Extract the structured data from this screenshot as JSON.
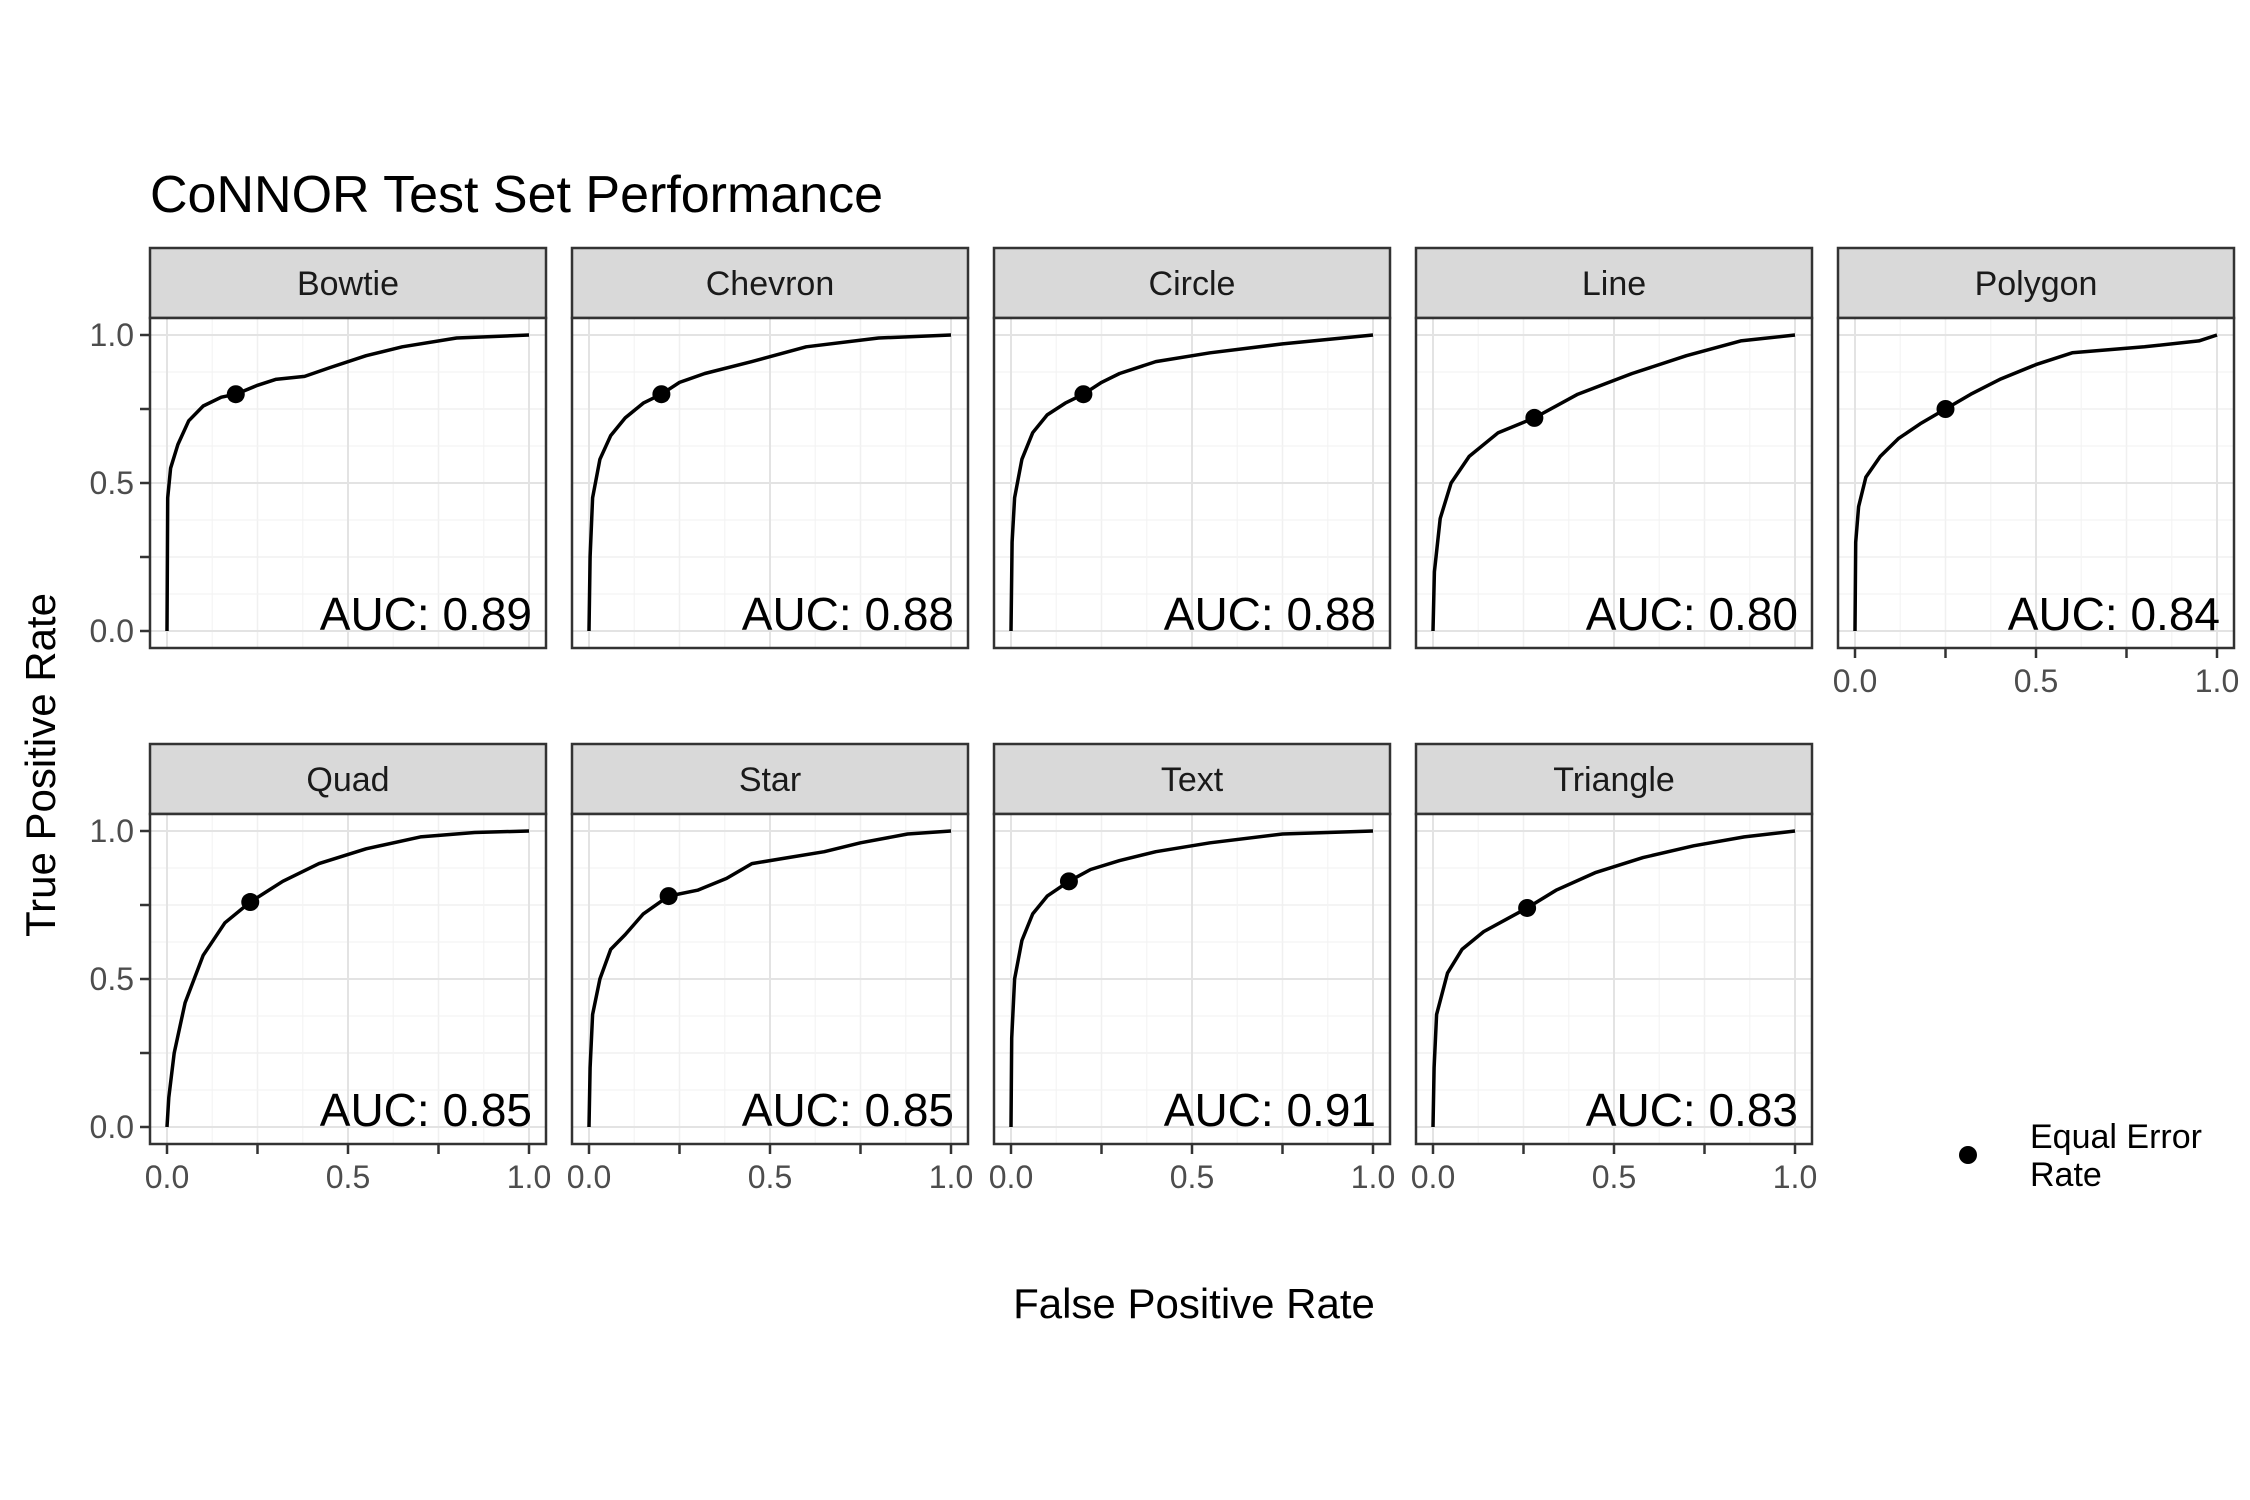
{
  "chart_data": {
    "type": "line",
    "title": "CoNNOR Test Set Performance",
    "xlabel": "False Positive Rate",
    "ylabel": "True Positive Rate",
    "xlim": [
      0,
      1
    ],
    "ylim": [
      0,
      1
    ],
    "x_ticks": [
      "0.0",
      "0.5",
      "1.0"
    ],
    "y_ticks": [
      "0.0",
      "0.5",
      "1.0"
    ],
    "grid": true,
    "legend": {
      "label": "Equal Error Rate",
      "position": "bottom-right"
    },
    "panels": [
      {
        "name": "Bowtie",
        "auc_label": "AUC: 0.89",
        "eer": [
          0.19,
          0.8
        ],
        "roc": [
          [
            0,
            0
          ],
          [
            0.002,
            0.45
          ],
          [
            0.01,
            0.55
          ],
          [
            0.03,
            0.63
          ],
          [
            0.06,
            0.71
          ],
          [
            0.1,
            0.76
          ],
          [
            0.15,
            0.79
          ],
          [
            0.19,
            0.8
          ],
          [
            0.25,
            0.83
          ],
          [
            0.3,
            0.85
          ],
          [
            0.38,
            0.86
          ],
          [
            0.45,
            0.89
          ],
          [
            0.55,
            0.93
          ],
          [
            0.65,
            0.96
          ],
          [
            0.8,
            0.99
          ],
          [
            1,
            1
          ]
        ]
      },
      {
        "name": "Chevron",
        "auc_label": "AUC: 0.88",
        "eer": [
          0.2,
          0.8
        ],
        "roc": [
          [
            0,
            0
          ],
          [
            0.003,
            0.25
          ],
          [
            0.01,
            0.45
          ],
          [
            0.03,
            0.58
          ],
          [
            0.06,
            0.66
          ],
          [
            0.1,
            0.72
          ],
          [
            0.15,
            0.77
          ],
          [
            0.2,
            0.8
          ],
          [
            0.25,
            0.84
          ],
          [
            0.32,
            0.87
          ],
          [
            0.45,
            0.91
          ],
          [
            0.6,
            0.96
          ],
          [
            0.8,
            0.99
          ],
          [
            1,
            1
          ]
        ]
      },
      {
        "name": "Circle",
        "auc_label": "AUC: 0.88",
        "eer": [
          0.2,
          0.8
        ],
        "roc": [
          [
            0,
            0
          ],
          [
            0.003,
            0.3
          ],
          [
            0.01,
            0.45
          ],
          [
            0.03,
            0.58
          ],
          [
            0.06,
            0.67
          ],
          [
            0.1,
            0.73
          ],
          [
            0.15,
            0.77
          ],
          [
            0.2,
            0.8
          ],
          [
            0.25,
            0.84
          ],
          [
            0.3,
            0.87
          ],
          [
            0.4,
            0.91
          ],
          [
            0.55,
            0.94
          ],
          [
            0.75,
            0.97
          ],
          [
            1,
            1
          ]
        ]
      },
      {
        "name": "Line",
        "auc_label": "AUC: 0.80",
        "eer": [
          0.28,
          0.72
        ],
        "roc": [
          [
            0,
            0
          ],
          [
            0.004,
            0.2
          ],
          [
            0.02,
            0.38
          ],
          [
            0.05,
            0.5
          ],
          [
            0.1,
            0.59
          ],
          [
            0.18,
            0.67
          ],
          [
            0.28,
            0.72
          ],
          [
            0.4,
            0.8
          ],
          [
            0.55,
            0.87
          ],
          [
            0.7,
            0.93
          ],
          [
            0.85,
            0.98
          ],
          [
            1,
            1
          ]
        ]
      },
      {
        "name": "Polygon",
        "auc_label": "AUC: 0.84",
        "eer": [
          0.25,
          0.75
        ],
        "roc": [
          [
            0,
            0
          ],
          [
            0.002,
            0.3
          ],
          [
            0.01,
            0.42
          ],
          [
            0.03,
            0.52
          ],
          [
            0.07,
            0.59
          ],
          [
            0.12,
            0.65
          ],
          [
            0.18,
            0.7
          ],
          [
            0.25,
            0.75
          ],
          [
            0.32,
            0.8
          ],
          [
            0.4,
            0.85
          ],
          [
            0.5,
            0.9
          ],
          [
            0.6,
            0.94
          ],
          [
            0.8,
            0.96
          ],
          [
            0.95,
            0.98
          ],
          [
            1,
            1
          ]
        ]
      },
      {
        "name": "Quad",
        "auc_label": "AUC: 0.85",
        "eer": [
          0.23,
          0.76
        ],
        "roc": [
          [
            0,
            0
          ],
          [
            0.005,
            0.1
          ],
          [
            0.02,
            0.25
          ],
          [
            0.05,
            0.42
          ],
          [
            0.1,
            0.58
          ],
          [
            0.16,
            0.69
          ],
          [
            0.23,
            0.76
          ],
          [
            0.32,
            0.83
          ],
          [
            0.42,
            0.89
          ],
          [
            0.55,
            0.94
          ],
          [
            0.7,
            0.98
          ],
          [
            0.85,
            0.995
          ],
          [
            1,
            1
          ]
        ]
      },
      {
        "name": "Star",
        "auc_label": "AUC: 0.85",
        "eer": [
          0.22,
          0.78
        ],
        "roc": [
          [
            0,
            0
          ],
          [
            0.003,
            0.2
          ],
          [
            0.01,
            0.38
          ],
          [
            0.03,
            0.5
          ],
          [
            0.06,
            0.6
          ],
          [
            0.1,
            0.65
          ],
          [
            0.15,
            0.72
          ],
          [
            0.22,
            0.78
          ],
          [
            0.3,
            0.8
          ],
          [
            0.38,
            0.84
          ],
          [
            0.45,
            0.89
          ],
          [
            0.55,
            0.91
          ],
          [
            0.65,
            0.93
          ],
          [
            0.75,
            0.96
          ],
          [
            0.88,
            0.99
          ],
          [
            1,
            1
          ]
        ]
      },
      {
        "name": "Text",
        "auc_label": "AUC: 0.91",
        "eer": [
          0.16,
          0.83
        ],
        "roc": [
          [
            0,
            0
          ],
          [
            0.002,
            0.3
          ],
          [
            0.01,
            0.5
          ],
          [
            0.03,
            0.63
          ],
          [
            0.06,
            0.72
          ],
          [
            0.1,
            0.78
          ],
          [
            0.16,
            0.83
          ],
          [
            0.22,
            0.87
          ],
          [
            0.3,
            0.9
          ],
          [
            0.4,
            0.93
          ],
          [
            0.55,
            0.96
          ],
          [
            0.75,
            0.99
          ],
          [
            1,
            1
          ]
        ]
      },
      {
        "name": "Triangle",
        "auc_label": "AUC: 0.83",
        "eer": [
          0.26,
          0.74
        ],
        "roc": [
          [
            0,
            0
          ],
          [
            0.003,
            0.2
          ],
          [
            0.01,
            0.38
          ],
          [
            0.04,
            0.52
          ],
          [
            0.08,
            0.6
          ],
          [
            0.14,
            0.66
          ],
          [
            0.2,
            0.7
          ],
          [
            0.26,
            0.74
          ],
          [
            0.34,
            0.8
          ],
          [
            0.45,
            0.86
          ],
          [
            0.58,
            0.91
          ],
          [
            0.72,
            0.95
          ],
          [
            0.86,
            0.98
          ],
          [
            1,
            1
          ]
        ]
      }
    ]
  }
}
